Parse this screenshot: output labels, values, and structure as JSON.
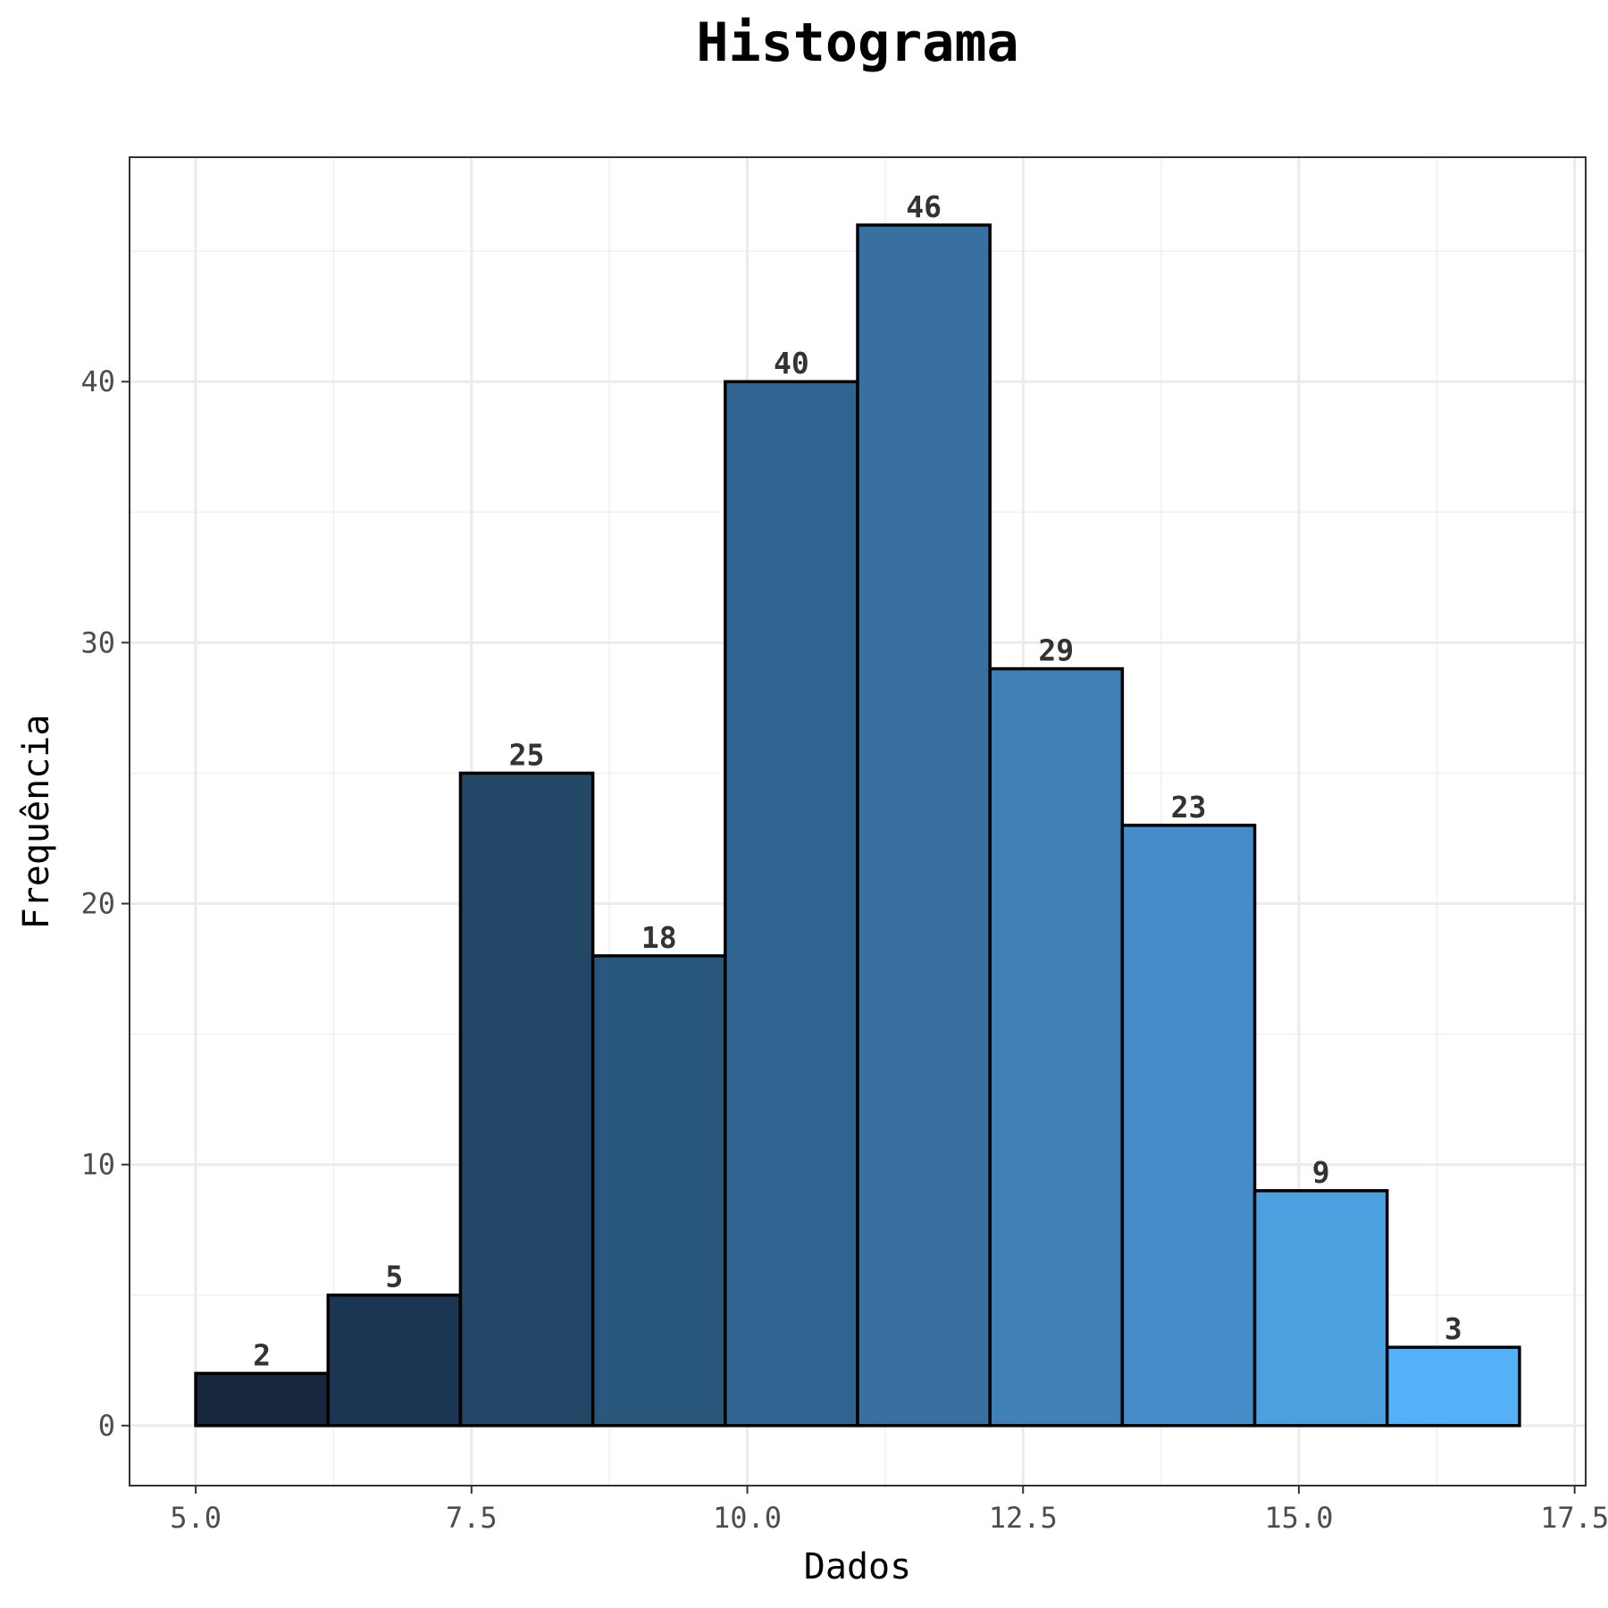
{
  "chart_data": {
    "type": "bar",
    "title": "Histograma",
    "xlabel": "Dados",
    "ylabel": "Frequência",
    "bin_edges": [
      5.0,
      6.2,
      7.4,
      8.6,
      9.8,
      11.0,
      12.2,
      13.4,
      14.6,
      15.8,
      17.0
    ],
    "values": [
      2,
      5,
      25,
      18,
      40,
      46,
      29,
      23,
      9,
      3
    ],
    "value_labels": [
      "2",
      "5",
      "25",
      "18",
      "40",
      "46",
      "29",
      "23",
      "9",
      "3"
    ],
    "colors": [
      "#15263d",
      "#1b3653",
      "#234867",
      "#2a587d",
      "#306591",
      "#3871a1",
      "#3e80b7",
      "#458dc9",
      "#4ba1df",
      "#55b1f7"
    ],
    "xlim": [
      4.4,
      17.6
    ],
    "ylim": [
      -2.3,
      48.6
    ],
    "xticks": [
      5.0,
      7.5,
      10.0,
      12.5,
      15.0,
      17.5
    ],
    "xtick_labels": [
      "5.0",
      "7.5",
      "10.0",
      "12.5",
      "15.0",
      "17.5"
    ],
    "yticks": [
      0,
      10,
      20,
      30,
      40
    ],
    "ytick_labels": [
      "0",
      "10",
      "20",
      "30",
      "40"
    ],
    "grid": true,
    "bar_edge_color": "#000000",
    "legend": "none"
  }
}
